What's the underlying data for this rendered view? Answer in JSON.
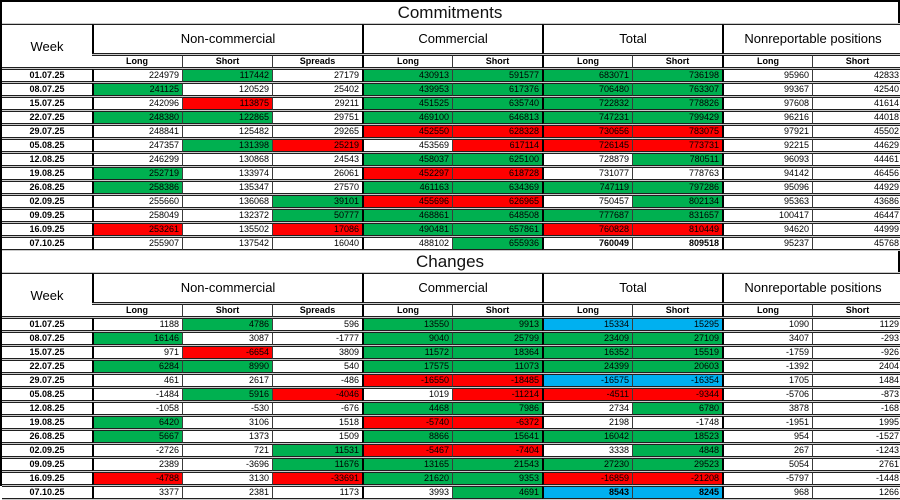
{
  "colors": {
    "w": "#FFFFFF",
    "g": "#00B050",
    "r": "#FF0000",
    "b": "#00B0F0"
  },
  "sections": [
    {
      "title": "Commitments",
      "week_header": "Week",
      "groups": [
        {
          "label": "Non-commercial",
          "span": 3
        },
        {
          "label": "Commercial",
          "span": 2
        },
        {
          "label": "Total",
          "span": 2
        },
        {
          "label": "Nonreportable positions",
          "span": 2
        }
      ],
      "subheaders": [
        "Long",
        "Short",
        "Spreads",
        "Long",
        "Short",
        "Long",
        "Short",
        "Long",
        "Short"
      ],
      "rows": [
        {
          "week": "01.07.25",
          "cells": [
            [
              "224979",
              "w"
            ],
            [
              "117442",
              "g"
            ],
            [
              "27179",
              "w"
            ],
            [
              "430913",
              "g"
            ],
            [
              "591577",
              "g"
            ],
            [
              "683071",
              "g"
            ],
            [
              "736198",
              "g"
            ],
            [
              "95960",
              "w"
            ],
            [
              "42833",
              "w"
            ]
          ]
        },
        {
          "week": "08.07.25",
          "cells": [
            [
              "241125",
              "g"
            ],
            [
              "120529",
              "w"
            ],
            [
              "25402",
              "w"
            ],
            [
              "439953",
              "g"
            ],
            [
              "617376",
              "g"
            ],
            [
              "706480",
              "g"
            ],
            [
              "763307",
              "g"
            ],
            [
              "99367",
              "w"
            ],
            [
              "42540",
              "w"
            ]
          ]
        },
        {
          "week": "15.07.25",
          "cells": [
            [
              "242096",
              "w"
            ],
            [
              "113875",
              "r"
            ],
            [
              "29211",
              "w"
            ],
            [
              "451525",
              "g"
            ],
            [
              "635740",
              "g"
            ],
            [
              "722832",
              "g"
            ],
            [
              "778826",
              "g"
            ],
            [
              "97608",
              "w"
            ],
            [
              "41614",
              "w"
            ]
          ]
        },
        {
          "week": "22.07.25",
          "cells": [
            [
              "248380",
              "g"
            ],
            [
              "122865",
              "g"
            ],
            [
              "29751",
              "w"
            ],
            [
              "469100",
              "g"
            ],
            [
              "646813",
              "g"
            ],
            [
              "747231",
              "g"
            ],
            [
              "799429",
              "g"
            ],
            [
              "96216",
              "w"
            ],
            [
              "44018",
              "w"
            ]
          ]
        },
        {
          "week": "29.07.25",
          "cells": [
            [
              "248841",
              "w"
            ],
            [
              "125482",
              "w"
            ],
            [
              "29265",
              "w"
            ],
            [
              "452550",
              "r"
            ],
            [
              "628328",
              "r"
            ],
            [
              "730656",
              "r"
            ],
            [
              "783075",
              "r"
            ],
            [
              "97921",
              "w"
            ],
            [
              "45502",
              "w"
            ]
          ]
        },
        {
          "week": "05.08.25",
          "cells": [
            [
              "247357",
              "w"
            ],
            [
              "131398",
              "g"
            ],
            [
              "25219",
              "r"
            ],
            [
              "453569",
              "w"
            ],
            [
              "617114",
              "r"
            ],
            [
              "726145",
              "r"
            ],
            [
              "773731",
              "r"
            ],
            [
              "92215",
              "w"
            ],
            [
              "44629",
              "w"
            ]
          ]
        },
        {
          "week": "12.08.25",
          "cells": [
            [
              "246299",
              "w"
            ],
            [
              "130868",
              "w"
            ],
            [
              "24543",
              "w"
            ],
            [
              "458037",
              "g"
            ],
            [
              "625100",
              "g"
            ],
            [
              "728879",
              "w"
            ],
            [
              "780511",
              "g"
            ],
            [
              "96093",
              "w"
            ],
            [
              "44461",
              "w"
            ]
          ]
        },
        {
          "week": "19.08.25",
          "cells": [
            [
              "252719",
              "g"
            ],
            [
              "133974",
              "w"
            ],
            [
              "26061",
              "w"
            ],
            [
              "452297",
              "r"
            ],
            [
              "618728",
              "r"
            ],
            [
              "731077",
              "w"
            ],
            [
              "778763",
              "w"
            ],
            [
              "94142",
              "w"
            ],
            [
              "46456",
              "w"
            ]
          ]
        },
        {
          "week": "26.08.25",
          "cells": [
            [
              "258386",
              "g"
            ],
            [
              "135347",
              "w"
            ],
            [
              "27570",
              "w"
            ],
            [
              "461163",
              "g"
            ],
            [
              "634369",
              "g"
            ],
            [
              "747119",
              "g"
            ],
            [
              "797286",
              "g"
            ],
            [
              "95096",
              "w"
            ],
            [
              "44929",
              "w"
            ]
          ]
        },
        {
          "week": "02.09.25",
          "cells": [
            [
              "255660",
              "w"
            ],
            [
              "136068",
              "w"
            ],
            [
              "39101",
              "g"
            ],
            [
              "455696",
              "r"
            ],
            [
              "626965",
              "r"
            ],
            [
              "750457",
              "w"
            ],
            [
              "802134",
              "g"
            ],
            [
              "95363",
              "w"
            ],
            [
              "43686",
              "w"
            ]
          ]
        },
        {
          "week": "09.09.25",
          "cells": [
            [
              "258049",
              "w"
            ],
            [
              "132372",
              "w"
            ],
            [
              "50777",
              "g"
            ],
            [
              "468861",
              "g"
            ],
            [
              "648508",
              "g"
            ],
            [
              "777687",
              "g"
            ],
            [
              "831657",
              "g"
            ],
            [
              "100417",
              "w"
            ],
            [
              "46447",
              "w"
            ]
          ]
        },
        {
          "week": "16.09.25",
          "cells": [
            [
              "253261",
              "r"
            ],
            [
              "135502",
              "w"
            ],
            [
              "17086",
              "r"
            ],
            [
              "490481",
              "g"
            ],
            [
              "657861",
              "g"
            ],
            [
              "760828",
              "r"
            ],
            [
              "810449",
              "r"
            ],
            [
              "94620",
              "w"
            ],
            [
              "44999",
              "w"
            ]
          ]
        },
        {
          "week": "07.10.25",
          "cells": [
            [
              "255907",
              "w"
            ],
            [
              "137542",
              "w"
            ],
            [
              "16040",
              "w"
            ],
            [
              "488102",
              "w"
            ],
            [
              "655936",
              "g"
            ],
            [
              "760049",
              "w",
              true
            ],
            [
              "809518",
              "w",
              true
            ],
            [
              "95237",
              "w"
            ],
            [
              "45768",
              "w"
            ]
          ]
        }
      ]
    },
    {
      "title": "Changes",
      "week_header": "Week",
      "groups": [
        {
          "label": "Non-commercial",
          "span": 3
        },
        {
          "label": "Commercial",
          "span": 2
        },
        {
          "label": "Total",
          "span": 2
        },
        {
          "label": "Nonreportable positions",
          "span": 2
        }
      ],
      "subheaders": [
        "Long",
        "Short",
        "Spreads",
        "Long",
        "Short",
        "Long",
        "Short",
        "Long",
        "Short"
      ],
      "rows": [
        {
          "week": "01.07.25",
          "cells": [
            [
              "1188",
              "w"
            ],
            [
              "4786",
              "g"
            ],
            [
              "596",
              "w"
            ],
            [
              "13550",
              "g"
            ],
            [
              "9913",
              "g"
            ],
            [
              "15334",
              "b"
            ],
            [
              "15295",
              "b"
            ],
            [
              "1090",
              "w"
            ],
            [
              "1129",
              "w"
            ]
          ]
        },
        {
          "week": "08.07.25",
          "cells": [
            [
              "16146",
              "g"
            ],
            [
              "3087",
              "w"
            ],
            [
              "-1777",
              "w"
            ],
            [
              "9040",
              "g"
            ],
            [
              "25799",
              "g"
            ],
            [
              "23409",
              "g"
            ],
            [
              "27109",
              "g"
            ],
            [
              "3407",
              "w"
            ],
            [
              "-293",
              "w"
            ]
          ]
        },
        {
          "week": "15.07.25",
          "cells": [
            [
              "971",
              "w"
            ],
            [
              "-6654",
              "r"
            ],
            [
              "3809",
              "w"
            ],
            [
              "11572",
              "g"
            ],
            [
              "18364",
              "g"
            ],
            [
              "16352",
              "g"
            ],
            [
              "15519",
              "g"
            ],
            [
              "-1759",
              "w"
            ],
            [
              "-926",
              "w"
            ]
          ]
        },
        {
          "week": "22.07.25",
          "cells": [
            [
              "6284",
              "g"
            ],
            [
              "8990",
              "g"
            ],
            [
              "540",
              "w"
            ],
            [
              "17575",
              "g"
            ],
            [
              "11073",
              "g"
            ],
            [
              "24399",
              "g"
            ],
            [
              "20603",
              "g"
            ],
            [
              "-1392",
              "w"
            ],
            [
              "2404",
              "w"
            ]
          ]
        },
        {
          "week": "29.07.25",
          "cells": [
            [
              "461",
              "w"
            ],
            [
              "2617",
              "w"
            ],
            [
              "-486",
              "w"
            ],
            [
              "-16550",
              "r"
            ],
            [
              "-18485",
              "r"
            ],
            [
              "-16575",
              "b"
            ],
            [
              "-16354",
              "b"
            ],
            [
              "1705",
              "w"
            ],
            [
              "1484",
              "w"
            ]
          ]
        },
        {
          "week": "05.08.25",
          "cells": [
            [
              "-1484",
              "w"
            ],
            [
              "5916",
              "g"
            ],
            [
              "-4046",
              "r"
            ],
            [
              "1019",
              "w"
            ],
            [
              "-11214",
              "r"
            ],
            [
              "-4511",
              "r"
            ],
            [
              "-9344",
              "r"
            ],
            [
              "-5706",
              "w"
            ],
            [
              "-873",
              "w"
            ]
          ]
        },
        {
          "week": "12.08.25",
          "cells": [
            [
              "-1058",
              "w"
            ],
            [
              "-530",
              "w"
            ],
            [
              "-676",
              "w"
            ],
            [
              "4468",
              "g"
            ],
            [
              "7986",
              "g"
            ],
            [
              "2734",
              "w"
            ],
            [
              "6780",
              "g"
            ],
            [
              "3878",
              "w"
            ],
            [
              "-168",
              "w"
            ]
          ]
        },
        {
          "week": "19.08.25",
          "cells": [
            [
              "6420",
              "g"
            ],
            [
              "3106",
              "w"
            ],
            [
              "1518",
              "w"
            ],
            [
              "-5740",
              "r"
            ],
            [
              "-6372",
              "r"
            ],
            [
              "2198",
              "w"
            ],
            [
              "-1748",
              "w"
            ],
            [
              "-1951",
              "w"
            ],
            [
              "1995",
              "w"
            ]
          ]
        },
        {
          "week": "26.08.25",
          "cells": [
            [
              "5667",
              "g"
            ],
            [
              "1373",
              "w"
            ],
            [
              "1509",
              "w"
            ],
            [
              "8866",
              "g"
            ],
            [
              "15641",
              "g"
            ],
            [
              "16042",
              "g"
            ],
            [
              "18523",
              "g"
            ],
            [
              "954",
              "w"
            ],
            [
              "-1527",
              "w"
            ]
          ]
        },
        {
          "week": "02.09.25",
          "cells": [
            [
              "-2726",
              "w"
            ],
            [
              "721",
              "w"
            ],
            [
              "11531",
              "g"
            ],
            [
              "-5467",
              "r"
            ],
            [
              "-7404",
              "r"
            ],
            [
              "3338",
              "w"
            ],
            [
              "4848",
              "g"
            ],
            [
              "267",
              "w"
            ],
            [
              "-1243",
              "w"
            ]
          ]
        },
        {
          "week": "09.09.25",
          "cells": [
            [
              "2389",
              "w"
            ],
            [
              "-3696",
              "w"
            ],
            [
              "11676",
              "g"
            ],
            [
              "13165",
              "g"
            ],
            [
              "21543",
              "g"
            ],
            [
              "27230",
              "g"
            ],
            [
              "29523",
              "g"
            ],
            [
              "5054",
              "w"
            ],
            [
              "2761",
              "w"
            ]
          ]
        },
        {
          "week": "16.09.25",
          "cells": [
            [
              "-4788",
              "r"
            ],
            [
              "3130",
              "w"
            ],
            [
              "-33691",
              "r"
            ],
            [
              "21620",
              "g"
            ],
            [
              "9353",
              "g"
            ],
            [
              "-16859",
              "r"
            ],
            [
              "-21208",
              "r"
            ],
            [
              "-5797",
              "w"
            ],
            [
              "-1448",
              "w"
            ]
          ]
        },
        {
          "week": "07.10.25",
          "cells": [
            [
              "3377",
              "w"
            ],
            [
              "2381",
              "w"
            ],
            [
              "1173",
              "w"
            ],
            [
              "3993",
              "w"
            ],
            [
              "4691",
              "g"
            ],
            [
              "8543",
              "b",
              true
            ],
            [
              "8245",
              "b",
              true
            ],
            [
              "968",
              "w"
            ],
            [
              "1266",
              "w"
            ]
          ]
        }
      ]
    }
  ]
}
